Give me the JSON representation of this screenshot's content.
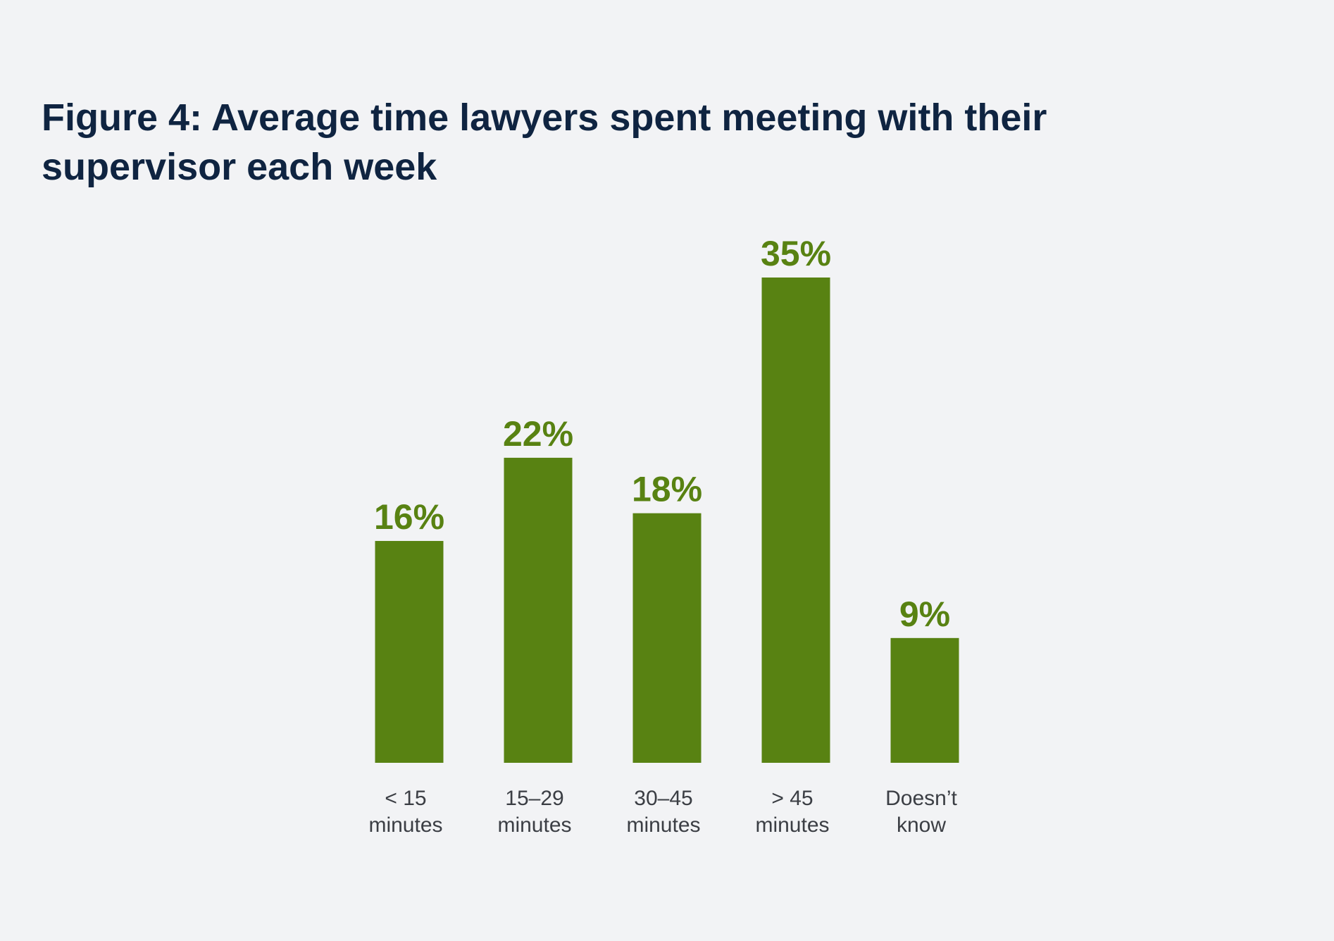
{
  "chart_data": {
    "type": "bar",
    "title": "Figure 4: Average time lawyers spent meeting with their supervisor each week",
    "categories": [
      [
        "< 15",
        "minutes"
      ],
      [
        "15–29",
        "minutes"
      ],
      [
        "30–45",
        "minutes"
      ],
      [
        "> 45",
        "minutes"
      ],
      [
        "Doesn’t",
        "know"
      ]
    ],
    "values": [
      16,
      22,
      18,
      35,
      9
    ],
    "value_labels": [
      "16%",
      "22%",
      "18%",
      "35%",
      "9%"
    ],
    "unit": "%",
    "xlabel": "",
    "ylabel": "",
    "ylim": [
      0,
      35
    ],
    "grid": false,
    "legend": "none",
    "colors": {
      "bar": "#588212",
      "value_label": "#588212",
      "title": "#0f2441",
      "background": "#f2f3f5"
    }
  }
}
